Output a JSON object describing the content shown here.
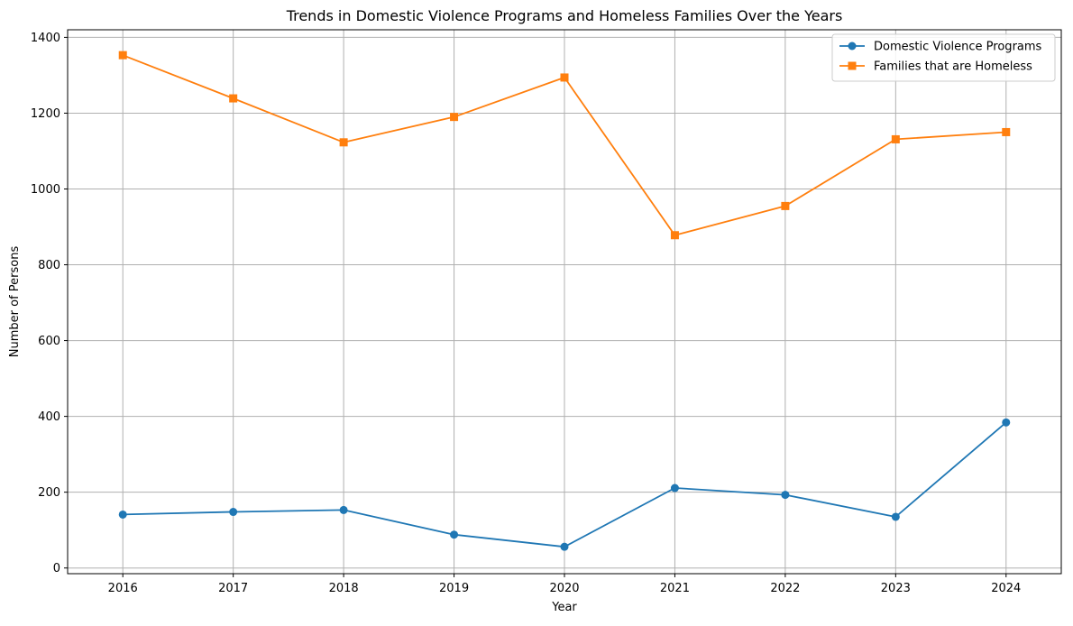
{
  "chart_data": {
    "type": "line",
    "title": "Trends in Domestic Violence Programs and Homeless Families Over the Years",
    "xlabel": "Year",
    "ylabel": "Number of Persons",
    "x": [
      "2016",
      "2017",
      "2018",
      "2019",
      "2020",
      "2021",
      "2022",
      "2023",
      "2024"
    ],
    "ylim": [
      -15,
      1420
    ],
    "yticks": [
      0,
      200,
      400,
      600,
      800,
      1000,
      1200,
      1400
    ],
    "grid": true,
    "legend_position": "top-right",
    "series": [
      {
        "name": "Domestic Violence Programs",
        "color": "#1f77b4",
        "marker": "circle",
        "values": [
          141,
          148,
          153,
          88,
          56,
          211,
          193,
          135,
          384
        ]
      },
      {
        "name": "Families that are Homeless",
        "color": "#ff7f0e",
        "marker": "square",
        "values": [
          1353,
          1239,
          1123,
          1190,
          1294,
          878,
          955,
          1131,
          1150
        ]
      }
    ]
  }
}
